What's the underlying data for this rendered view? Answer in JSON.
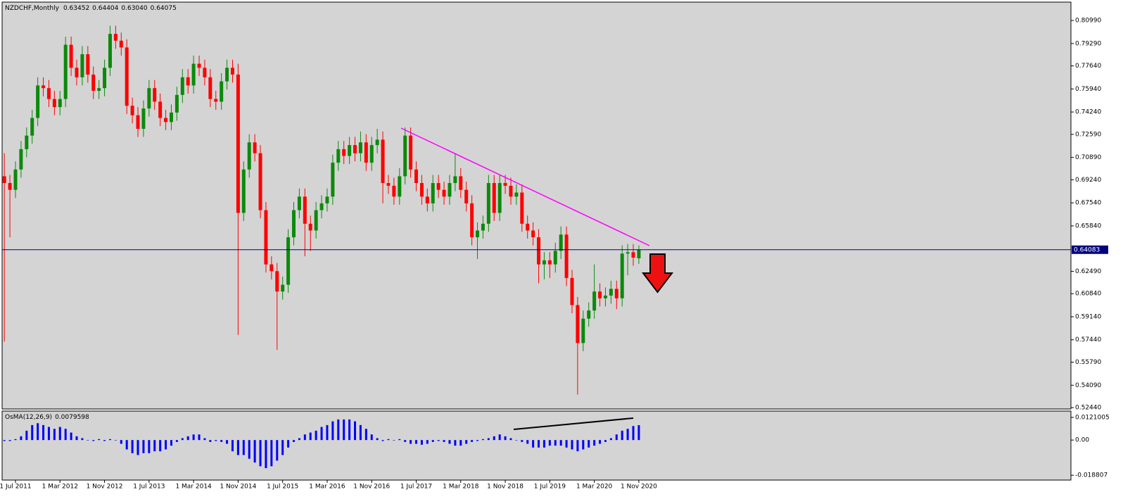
{
  "chart_data": {
    "type": "candlestick",
    "header_values": [
      "0.63452",
      "0.64404",
      "0.63040",
      "0.64075"
    ],
    "categories": [
      null,
      null,
      "1 Jul 2011",
      null,
      null,
      null,
      null,
      null,
      null,
      null,
      "1 Mar 2012",
      null,
      null,
      null,
      null,
      null,
      null,
      null,
      "1 Nov 2012",
      null,
      null,
      null,
      null,
      null,
      null,
      null,
      "1 Jul 2013",
      null,
      null,
      null,
      null,
      null,
      null,
      null,
      "1 Mar 2014",
      null,
      null,
      null,
      null,
      null,
      null,
      null,
      "1 Nov 2014",
      null,
      null,
      null,
      null,
      null,
      null,
      null,
      "1 Jul 2015",
      null,
      null,
      null,
      null,
      null,
      null,
      null,
      "1 Mar 2016",
      null,
      null,
      null,
      null,
      null,
      null,
      null,
      "1 Nov 2016",
      null,
      null,
      null,
      null,
      null,
      null,
      null,
      "1 Jul 2017",
      null,
      null,
      null,
      null,
      null,
      null,
      null,
      "1 Mar 2018",
      null,
      null,
      null,
      null,
      null,
      null,
      null,
      "1 Nov 2018",
      null,
      null,
      null,
      null,
      null,
      null,
      null,
      "1 Jul 2019",
      null,
      null,
      null,
      null,
      null,
      null,
      null,
      "1 Mar 2020",
      null,
      null,
      null,
      null,
      null,
      null,
      null,
      "1 Nov 2020"
    ],
    "series": [
      {
        "name": "NZDCHF,Monthly",
        "type": "candlestick",
        "up_color": "#0b8a0b",
        "down_color": "#ff0000",
        "ohlc": [
          [
            0.695,
            0.712,
            0.573,
            0.69
          ],
          [
            0.69,
            0.696,
            0.65,
            0.685
          ],
          [
            0.685,
            0.706,
            0.679,
            0.7
          ],
          [
            0.7,
            0.721,
            0.694,
            0.715
          ],
          [
            0.715,
            0.731,
            0.709,
            0.725
          ],
          [
            0.725,
            0.744,
            0.719,
            0.738
          ],
          [
            0.738,
            0.768,
            0.732,
            0.762
          ],
          [
            0.762,
            0.768,
            0.754,
            0.76
          ],
          [
            0.76,
            0.766,
            0.746,
            0.752
          ],
          [
            0.752,
            0.758,
            0.74,
            0.746
          ],
          [
            0.746,
            0.758,
            0.74,
            0.752
          ],
          [
            0.752,
            0.798,
            0.746,
            0.792
          ],
          [
            0.792,
            0.798,
            0.769,
            0.775
          ],
          [
            0.775,
            0.781,
            0.762,
            0.768
          ],
          [
            0.768,
            0.791,
            0.762,
            0.785
          ],
          [
            0.785,
            0.791,
            0.764,
            0.77
          ],
          [
            0.77,
            0.776,
            0.752,
            0.758
          ],
          [
            0.758,
            0.766,
            0.752,
            0.76
          ],
          [
            0.76,
            0.781,
            0.754,
            0.775
          ],
          [
            0.775,
            0.806,
            0.769,
            0.8
          ],
          [
            0.8,
            0.806,
            0.789,
            0.795
          ],
          [
            0.795,
            0.801,
            0.784,
            0.79
          ],
          [
            0.79,
            0.796,
            0.741,
            0.747
          ],
          [
            0.747,
            0.753,
            0.734,
            0.74
          ],
          [
            0.74,
            0.746,
            0.724,
            0.73
          ],
          [
            0.73,
            0.751,
            0.724,
            0.745
          ],
          [
            0.745,
            0.766,
            0.739,
            0.76
          ],
          [
            0.76,
            0.766,
            0.744,
            0.75
          ],
          [
            0.75,
            0.756,
            0.732,
            0.738
          ],
          [
            0.738,
            0.744,
            0.729,
            0.735
          ],
          [
            0.735,
            0.748,
            0.729,
            0.742
          ],
          [
            0.742,
            0.761,
            0.736,
            0.755
          ],
          [
            0.755,
            0.774,
            0.749,
            0.768
          ],
          [
            0.768,
            0.774,
            0.756,
            0.762
          ],
          [
            0.762,
            0.784,
            0.756,
            0.778
          ],
          [
            0.778,
            0.784,
            0.769,
            0.775
          ],
          [
            0.775,
            0.781,
            0.762,
            0.768
          ],
          [
            0.768,
            0.774,
            0.746,
            0.752
          ],
          [
            0.752,
            0.758,
            0.744,
            0.75
          ],
          [
            0.75,
            0.771,
            0.744,
            0.765
          ],
          [
            0.765,
            0.781,
            0.759,
            0.775
          ],
          [
            0.775,
            0.781,
            0.764,
            0.77
          ],
          [
            0.77,
            0.778,
            0.578,
            0.668
          ],
          [
            0.668,
            0.706,
            0.662,
            0.7
          ],
          [
            0.7,
            0.726,
            0.694,
            0.72
          ],
          [
            0.72,
            0.726,
            0.706,
            0.712
          ],
          [
            0.712,
            0.718,
            0.664,
            0.67
          ],
          [
            0.67,
            0.676,
            0.624,
            0.63
          ],
          [
            0.63,
            0.636,
            0.619,
            0.625
          ],
          [
            0.625,
            0.631,
            0.567,
            0.61
          ],
          [
            0.61,
            0.621,
            0.604,
            0.615
          ],
          [
            0.615,
            0.656,
            0.609,
            0.65
          ],
          [
            0.65,
            0.676,
            0.644,
            0.67
          ],
          [
            0.67,
            0.686,
            0.664,
            0.68
          ],
          [
            0.68,
            0.686,
            0.636,
            0.66
          ],
          [
            0.66,
            0.666,
            0.64,
            0.655
          ],
          [
            0.655,
            0.676,
            0.649,
            0.67
          ],
          [
            0.67,
            0.681,
            0.664,
            0.675
          ],
          [
            0.675,
            0.686,
            0.669,
            0.68
          ],
          [
            0.68,
            0.711,
            0.674,
            0.705
          ],
          [
            0.705,
            0.721,
            0.699,
            0.715
          ],
          [
            0.715,
            0.721,
            0.704,
            0.71
          ],
          [
            0.71,
            0.724,
            0.704,
            0.718
          ],
          [
            0.718,
            0.724,
            0.706,
            0.712
          ],
          [
            0.712,
            0.728,
            0.706,
            0.72
          ],
          [
            0.72,
            0.726,
            0.699,
            0.705
          ],
          [
            0.705,
            0.724,
            0.699,
            0.718
          ],
          [
            0.718,
            0.73,
            0.712,
            0.722
          ],
          [
            0.722,
            0.728,
            0.675,
            0.69
          ],
          [
            0.69,
            0.696,
            0.682,
            0.688
          ],
          [
            0.688,
            0.694,
            0.674,
            0.68
          ],
          [
            0.68,
            0.701,
            0.674,
            0.695
          ],
          [
            0.695,
            0.731,
            0.689,
            0.725
          ],
          [
            0.725,
            0.731,
            0.694,
            0.7
          ],
          [
            0.7,
            0.706,
            0.684,
            0.69
          ],
          [
            0.69,
            0.696,
            0.674,
            0.68
          ],
          [
            0.68,
            0.686,
            0.669,
            0.675
          ],
          [
            0.675,
            0.696,
            0.669,
            0.69
          ],
          [
            0.69,
            0.696,
            0.679,
            0.685
          ],
          [
            0.685,
            0.691,
            0.674,
            0.68
          ],
          [
            0.68,
            0.696,
            0.674,
            0.69
          ],
          [
            0.69,
            0.712,
            0.684,
            0.695
          ],
          [
            0.695,
            0.701,
            0.679,
            0.685
          ],
          [
            0.685,
            0.691,
            0.669,
            0.675
          ],
          [
            0.675,
            0.681,
            0.644,
            0.65
          ],
          [
            0.65,
            0.661,
            0.634,
            0.655
          ],
          [
            0.655,
            0.666,
            0.649,
            0.66
          ],
          [
            0.66,
            0.696,
            0.654,
            0.69
          ],
          [
            0.69,
            0.696,
            0.662,
            0.668
          ],
          [
            0.668,
            0.696,
            0.662,
            0.69
          ],
          [
            0.69,
            0.696,
            0.682,
            0.688
          ],
          [
            0.688,
            0.694,
            0.674,
            0.68
          ],
          [
            0.68,
            0.689,
            0.674,
            0.683
          ],
          [
            0.683,
            0.689,
            0.654,
            0.66
          ],
          [
            0.66,
            0.666,
            0.649,
            0.655
          ],
          [
            0.655,
            0.661,
            0.644,
            0.65
          ],
          [
            0.65,
            0.656,
            0.616,
            0.63
          ],
          [
            0.63,
            0.639,
            0.619,
            0.633
          ],
          [
            0.633,
            0.639,
            0.62,
            0.63
          ],
          [
            0.63,
            0.646,
            0.624,
            0.64
          ],
          [
            0.64,
            0.658,
            0.634,
            0.652
          ],
          [
            0.652,
            0.658,
            0.614,
            0.62
          ],
          [
            0.62,
            0.626,
            0.594,
            0.6
          ],
          [
            0.6,
            0.606,
            0.534,
            0.572
          ],
          [
            0.572,
            0.596,
            0.566,
            0.59
          ],
          [
            0.59,
            0.602,
            0.584,
            0.596
          ],
          [
            0.596,
            0.63,
            0.59,
            0.61
          ],
          [
            0.61,
            0.616,
            0.599,
            0.605
          ],
          [
            0.605,
            0.613,
            0.599,
            0.607
          ],
          [
            0.607,
            0.618,
            0.601,
            0.612
          ],
          [
            0.612,
            0.618,
            0.597,
            0.605
          ],
          [
            0.605,
            0.644,
            0.599,
            0.638
          ],
          [
            0.638,
            0.645,
            0.622,
            0.639
          ],
          [
            0.639,
            0.645,
            0.629,
            0.635
          ],
          [
            0.63452,
            0.64404,
            0.6304,
            0.64075
          ]
        ]
      },
      {
        "name": "OsMA(12,26,9)",
        "type": "bar",
        "axis": "y2",
        "color": "#0000ff",
        "values": [
          -0.0005,
          -0.0005,
          0.0005,
          0.002,
          0.005,
          0.008,
          0.009,
          0.008,
          0.007,
          0.006,
          0.007,
          0.006,
          0.004,
          0.002,
          0.001,
          0.0,
          -0.0005,
          0.0005,
          -0.0005,
          0.0005,
          0.0,
          -0.002,
          -0.005,
          -0.007,
          -0.008,
          -0.007,
          -0.007,
          -0.006,
          -0.006,
          -0.005,
          -0.003,
          -0.001,
          0.001,
          0.002,
          0.003,
          0.003,
          0.001,
          -0.001,
          -0.0005,
          -0.001,
          -0.002,
          -0.006,
          -0.008,
          -0.008,
          -0.01,
          -0.012,
          -0.014,
          -0.015,
          -0.014,
          -0.011,
          -0.008,
          -0.004,
          -0.001,
          0.001,
          0.003,
          0.004,
          0.005,
          0.007,
          0.008,
          0.01,
          0.011,
          0.011,
          0.011,
          0.01,
          0.008,
          0.006,
          0.003,
          0.001,
          -0.0005,
          0.0005,
          0.0,
          0.0005,
          -0.001,
          -0.002,
          -0.002,
          -0.0025,
          -0.002,
          -0.001,
          -0.0005,
          -0.001,
          -0.002,
          -0.003,
          -0.003,
          -0.002,
          -0.001,
          -0.0005,
          0.0005,
          0.001,
          0.002,
          0.003,
          0.002,
          0.001,
          0.0,
          -0.001,
          -0.002,
          -0.004,
          -0.004,
          -0.004,
          -0.003,
          -0.003,
          -0.003,
          -0.004,
          -0.005,
          -0.006,
          -0.005,
          -0.004,
          -0.003,
          -0.002,
          -0.001,
          0.001,
          0.003,
          0.005,
          0.006,
          0.0075,
          0.0079598
        ]
      }
    ],
    "ylim": [
      0.5239,
      0.8224
    ],
    "yticks": [
      {
        "value": 0.8099,
        "label": "0.80990"
      },
      {
        "value": 0.7929,
        "label": "0.79290"
      },
      {
        "value": 0.7764,
        "label": "0.77640"
      },
      {
        "value": 0.7594,
        "label": "0.75940"
      },
      {
        "value": 0.7424,
        "label": "0.74240"
      },
      {
        "value": 0.7259,
        "label": "0.72590"
      },
      {
        "value": 0.7089,
        "label": "0.70890"
      },
      {
        "value": 0.6924,
        "label": "0.69240"
      },
      {
        "value": 0.6754,
        "label": "0.67540"
      },
      {
        "value": 0.6584,
        "label": "0.65840"
      },
      {
        "value": 0.6249,
        "label": "0.62490"
      },
      {
        "value": 0.6084,
        "label": "0.60840"
      },
      {
        "value": 0.5914,
        "label": "0.59140"
      },
      {
        "value": 0.5744,
        "label": "0.57440"
      },
      {
        "value": 0.5579,
        "label": "0.55790"
      },
      {
        "value": 0.5409,
        "label": "0.54090"
      },
      {
        "value": 0.5244,
        "label": "0.52440"
      }
    ],
    "price_line": {
      "value": 0.64083,
      "label": "0.64083",
      "color": "#00007f"
    },
    "y2lim": [
      -0.021,
      0.0151
    ],
    "y2ticks": [
      0.0121005,
      {
        "value": 0,
        "label": "0.00"
      },
      -0.018807
    ],
    "grid": false
  }
}
